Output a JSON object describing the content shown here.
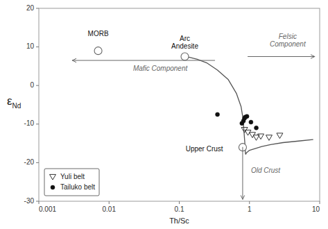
{
  "chart_data": {
    "type": "scatter",
    "xlabel": "Th/Sc",
    "ylabel": "εNd",
    "log": "x",
    "xlim": [
      0.001,
      10
    ],
    "xticks": [
      0.001,
      0.01,
      0.1,
      1,
      10
    ],
    "ylim": [
      -30,
      20
    ],
    "yticks": [
      -30,
      -20,
      -10,
      0,
      10,
      20
    ],
    "grid": false,
    "legend": "lower left",
    "series": [
      {
        "type": "line",
        "color": "#555555",
        "x": [
          0.12,
          0.14,
          0.18,
          0.25,
          0.35,
          0.5,
          0.65,
          0.76,
          0.8,
          0.82,
          0.84,
          0.86,
          0.87,
          0.875,
          0.88,
          0.89,
          0.9,
          1.0,
          1.5,
          2.0,
          3.0,
          5.0,
          8.0
        ],
        "values": [
          7.5,
          7.3,
          6.8,
          5.8,
          4.0,
          1.5,
          -2.0,
          -5.5,
          -8.0,
          -10.0,
          -12.5,
          -15.0,
          -16.5,
          -17.5,
          -17.8,
          -17.8,
          -17.5,
          -16.8,
          -15.8,
          -15.3,
          -14.8,
          -14.4,
          -14.0
        ]
      },
      {
        "type": "scatter",
        "marker": "circle-open",
        "color": "#666666",
        "x": [
          0.007,
          0.12,
          0.8
        ],
        "values": [
          9,
          7.5,
          -16
        ]
      },
      {
        "type": "scatter",
        "name": "Yuli belt",
        "marker": "triangle-down-open",
        "color": "#333333",
        "x": [
          0.85,
          0.95,
          1.1,
          1.25,
          1.45,
          1.9,
          2.7
        ],
        "values": [
          -11.5,
          -12.2,
          -12.8,
          -13.5,
          -13.2,
          -13.5,
          -13.0
        ]
      },
      {
        "type": "scatter",
        "name": "Tailuko belt",
        "marker": "circle",
        "color": "#111111",
        "x": [
          0.35,
          0.78,
          0.82,
          0.85,
          0.87,
          0.92,
          1.05,
          1.25
        ],
        "values": [
          -7.5,
          -9.8,
          -9.2,
          -8.5,
          -8.2,
          -8.0,
          -9.5,
          -11.0
        ]
      }
    ],
    "annotations": [
      {
        "text": "MORB",
        "x": 0.007,
        "y": 12.2
      },
      {
        "text": "Arc\nAndesite",
        "x": 0.12,
        "y": 9
      },
      {
        "text": "Upper Crust",
        "x": 0.42,
        "y": -16.5
      },
      {
        "text": "Mafic Component",
        "x": 0.022,
        "y": 4.5,
        "color": "#666666",
        "arrow": {
          "x": [
            0.32,
            0.003
          ],
          "y": [
            6.5,
            6.5
          ]
        }
      },
      {
        "text": "Felsic\nComponent",
        "x": 3.5,
        "y": 9.5,
        "color": "#666666",
        "arrow": {
          "x": [
            0.95,
            8.5
          ],
          "y": [
            7.5,
            7.5
          ]
        }
      },
      {
        "text": "Old Crust",
        "x": 1.05,
        "y": -22,
        "color": "#666666",
        "arrow": {
          "x": [
            0.8,
            0.8
          ],
          "y": [
            -16,
            -29.5
          ]
        }
      }
    ]
  }
}
